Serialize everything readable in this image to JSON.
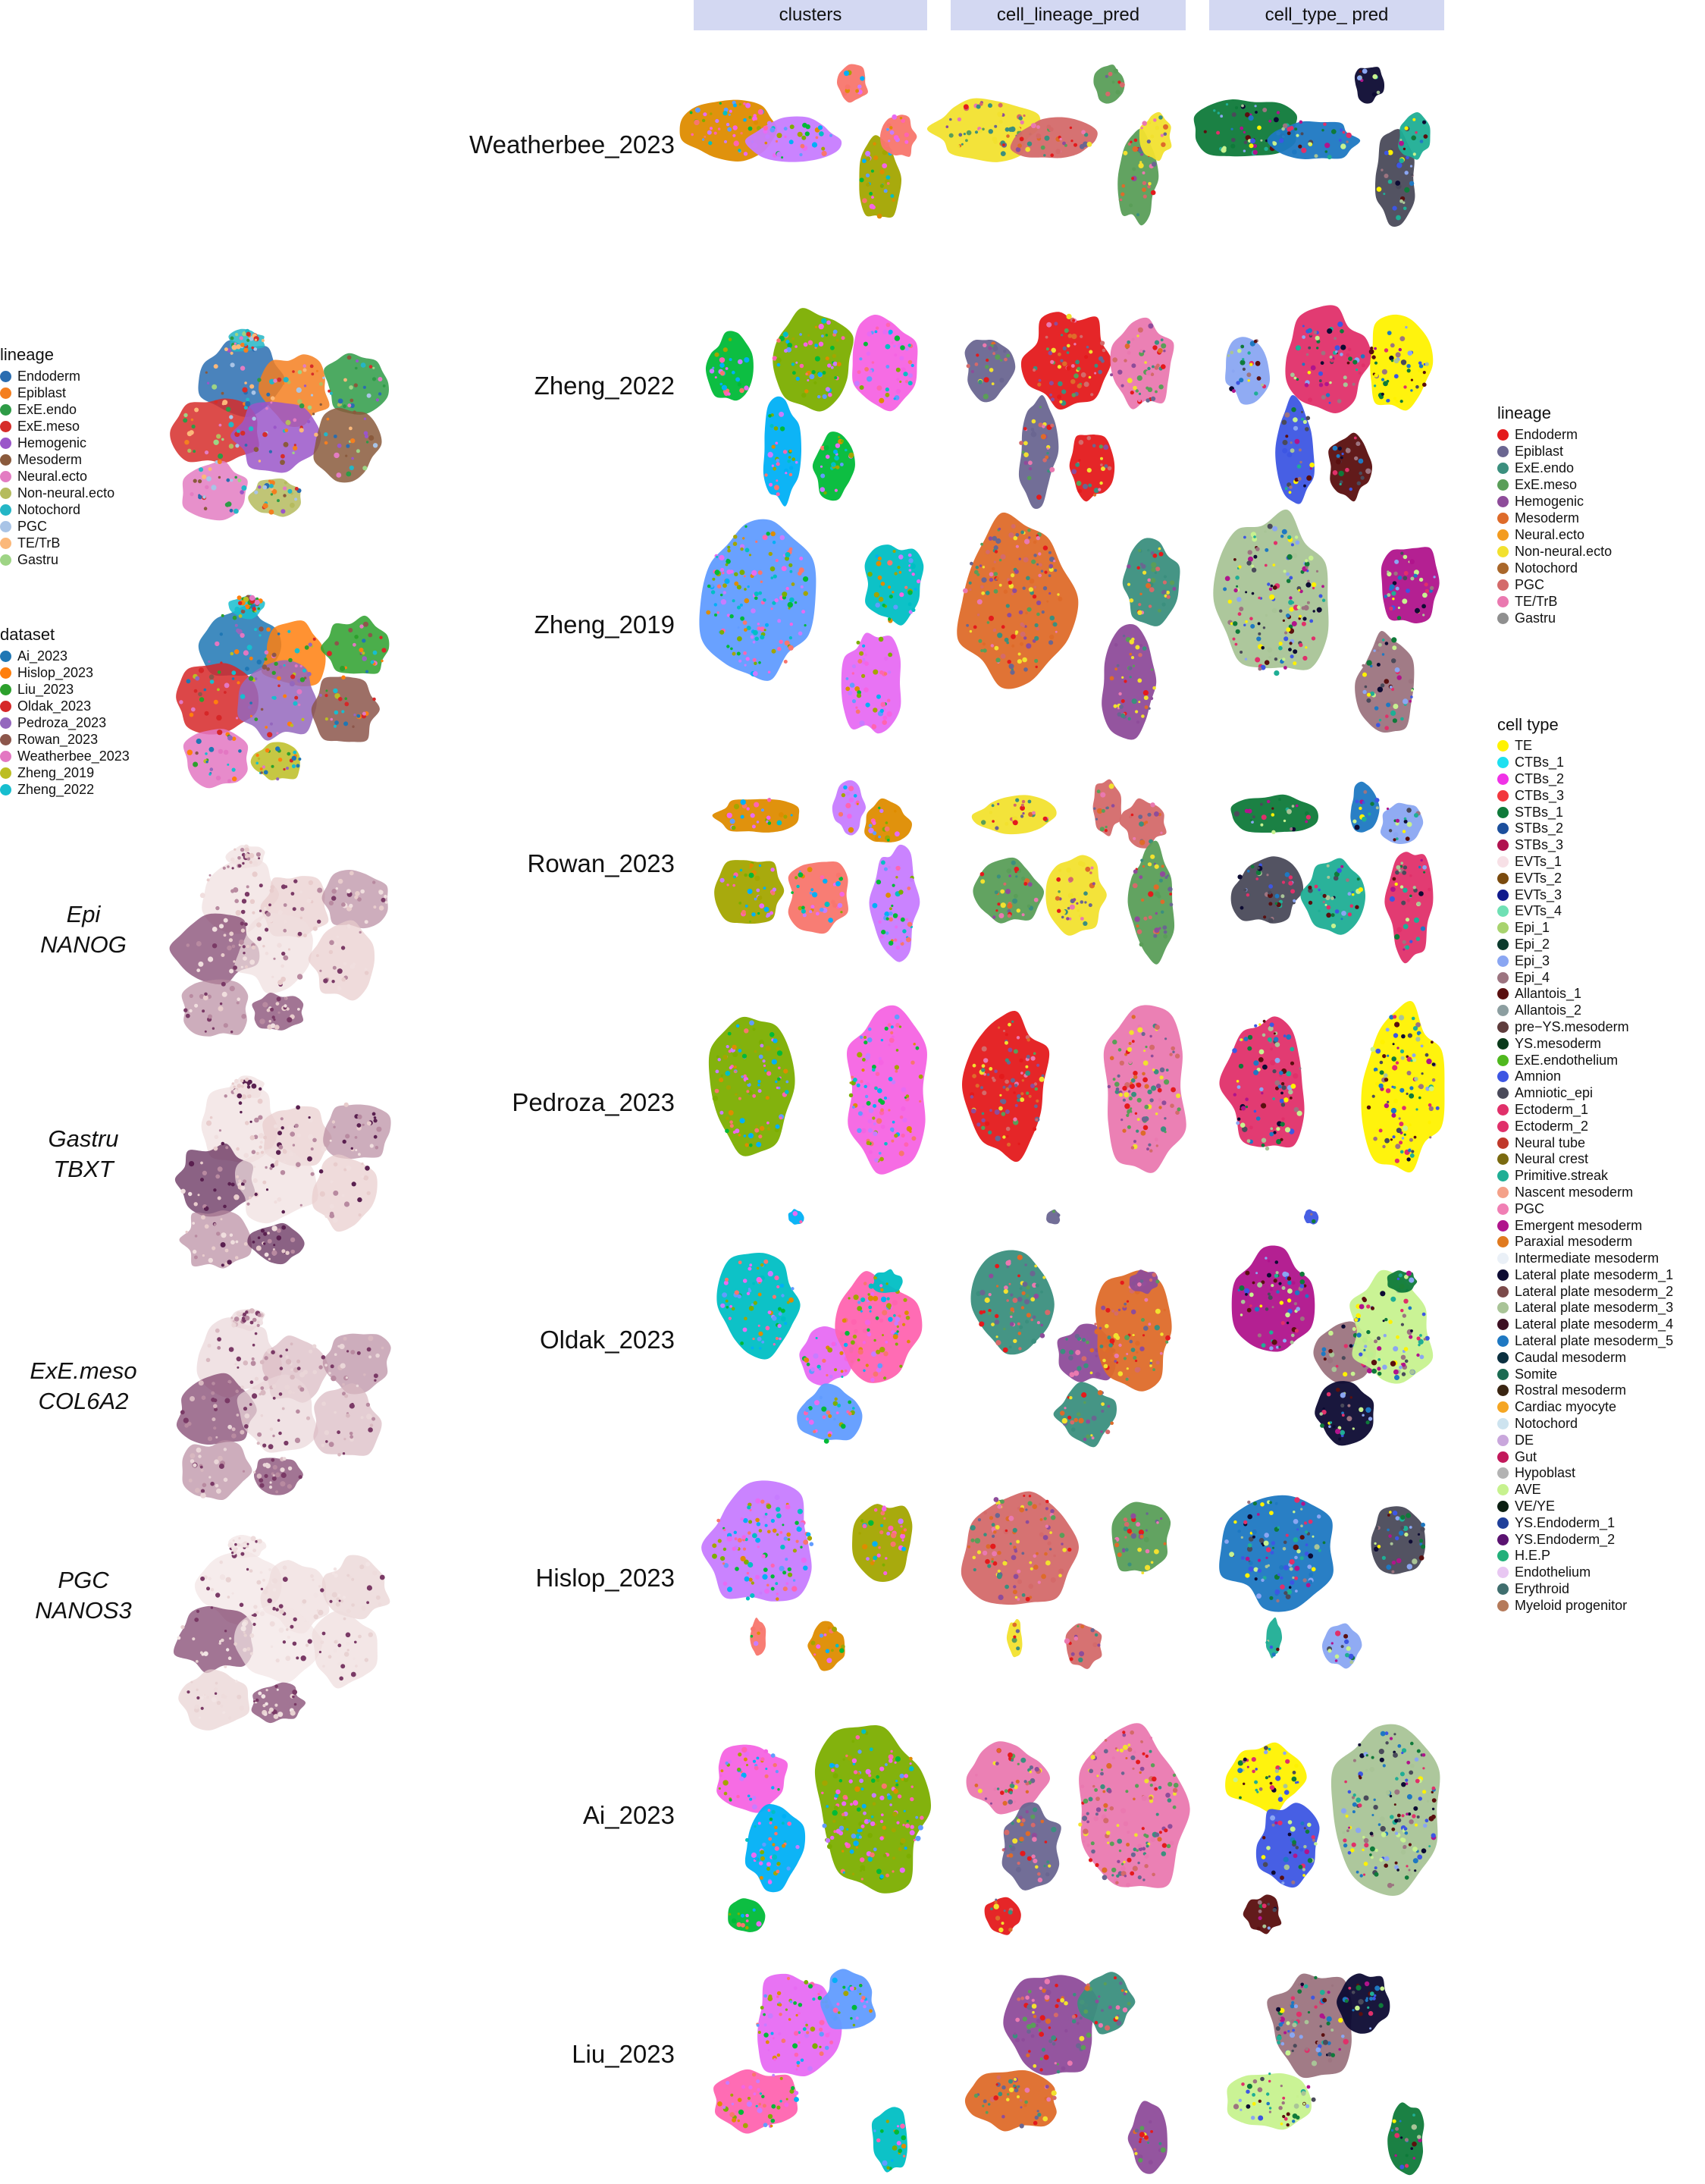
{
  "columns": [
    "clusters",
    "cell_lineage_pred",
    "cell_type_ pred"
  ],
  "datasets": [
    "Weatherbee_2023",
    "Zheng_2022",
    "Zheng_2019",
    "Rowan_2023",
    "Pedroza_2023",
    "Oldak_2023",
    "Hislop_2023",
    "Ai_2023",
    "Liu_2023"
  ],
  "gene_panels": [
    {
      "line1": "Epi",
      "line2": "NANOG"
    },
    {
      "line1": "Gastru",
      "line2": "TBXT"
    },
    {
      "line1": "ExE.meso",
      "line2": "COL6A2"
    },
    {
      "line1": "PGC",
      "line2": "NANOS3"
    }
  ],
  "left_legends": {
    "lineage": {
      "title": "lineage",
      "items": [
        {
          "label": "Endoderm",
          "color": "#2a6db0"
        },
        {
          "label": "Epiblast",
          "color": "#f47f20"
        },
        {
          "label": "ExE.endo",
          "color": "#2e9b46"
        },
        {
          "label": "ExE.meso",
          "color": "#d62d2a"
        },
        {
          "label": "Hemogenic",
          "color": "#9a56c9"
        },
        {
          "label": "Mesoderm",
          "color": "#8a5a3c"
        },
        {
          "label": "Neural.ecto",
          "color": "#e37cc2"
        },
        {
          "label": "Non-neural.ecto",
          "color": "#b5bb5e"
        },
        {
          "label": "Notochord",
          "color": "#24b6c6"
        },
        {
          "label": "PGC",
          "color": "#a9c4e6"
        },
        {
          "label": "TE/TrB",
          "color": "#fbb87a"
        },
        {
          "label": "Gastru",
          "color": "#9ed485"
        }
      ]
    },
    "dataset": {
      "title": "dataset",
      "items": [
        {
          "label": "Ai_2023",
          "color": "#1f77b4"
        },
        {
          "label": "Hislop_2023",
          "color": "#ff7f0e"
        },
        {
          "label": "Liu_2023",
          "color": "#2ca02c"
        },
        {
          "label": "Oldak_2023",
          "color": "#d62728"
        },
        {
          "label": "Pedroza_2023",
          "color": "#9467bd"
        },
        {
          "label": "Rowan_2023",
          "color": "#8c564b"
        },
        {
          "label": "Weatherbee_2023",
          "color": "#e377c2"
        },
        {
          "label": "Zheng_2019",
          "color": "#bcbd22"
        },
        {
          "label": "Zheng_2022",
          "color": "#17becf"
        }
      ]
    }
  },
  "right_legends": {
    "lineage": {
      "title": "lineage",
      "items": [
        {
          "label": "Endoderm",
          "color": "#e41a1c"
        },
        {
          "label": "Epiblast",
          "color": "#6a6691"
        },
        {
          "label": "ExE.endo",
          "color": "#3b8f7e"
        },
        {
          "label": "ExE.meso",
          "color": "#5a9e58"
        },
        {
          "label": "Hemogenic",
          "color": "#8e4c9a"
        },
        {
          "label": "Mesoderm",
          "color": "#de6b2a"
        },
        {
          "label": "Neural.ecto",
          "color": "#f39b1f"
        },
        {
          "label": "Non-neural.ecto",
          "color": "#f2e12f"
        },
        {
          "label": "Notochord",
          "color": "#a9672a"
        },
        {
          "label": "PGC",
          "color": "#d46a6a"
        },
        {
          "label": "TE/TrB",
          "color": "#ea79b0"
        },
        {
          "label": "Gastru",
          "color": "#8f8f8f"
        }
      ]
    },
    "cell_type": {
      "title": "cell type",
      "items": [
        {
          "label": "TE",
          "color": "#fff200"
        },
        {
          "label": "CTBs_1",
          "color": "#1ee0f0"
        },
        {
          "label": "CTBs_2",
          "color": "#f032e6"
        },
        {
          "label": "CTBs_3",
          "color": "#f2373d"
        },
        {
          "label": "STBs_1",
          "color": "#0f7a3a"
        },
        {
          "label": "STBs_2",
          "color": "#1c4f9c"
        },
        {
          "label": "STBs_3",
          "color": "#b0124f"
        },
        {
          "label": "EVTs_1",
          "color": "#f7e0e6"
        },
        {
          "label": "EVTs_2",
          "color": "#7a4a0e"
        },
        {
          "label": "EVTs_3",
          "color": "#101a8c"
        },
        {
          "label": "EVTs_4",
          "color": "#6fe0b4"
        },
        {
          "label": "Epi_1",
          "color": "#a8d36e"
        },
        {
          "label": "Epi_2",
          "color": "#0c3b2d"
        },
        {
          "label": "Epi_3",
          "color": "#8aa6f2"
        },
        {
          "label": "Epi_4",
          "color": "#9c7480"
        },
        {
          "label": "Allantois_1",
          "color": "#5a0f0f"
        },
        {
          "label": "Allantois_2",
          "color": "#8c9ea0"
        },
        {
          "label": "pre−YS.mesoderm",
          "color": "#5e3c3c"
        },
        {
          "label": "YS.mesoderm",
          "color": "#0a3a1a"
        },
        {
          "label": "ExE.endothelium",
          "color": "#4fb81e"
        },
        {
          "label": "Amnion",
          "color": "#3d56e3"
        },
        {
          "label": "Amniotic_epi",
          "color": "#4a4a5a"
        },
        {
          "label": "Ectoderm_1",
          "color": "#e0306a"
        },
        {
          "label": "Ectoderm_2",
          "color": "#e0306a"
        },
        {
          "label": "Neural tube",
          "color": "#c0392b"
        },
        {
          "label": "Neural crest",
          "color": "#7a6a10"
        },
        {
          "label": "Primitive.streak",
          "color": "#1fae95"
        },
        {
          "label": "Nascent mesoderm",
          "color": "#f4a189"
        },
        {
          "label": "PGC",
          "color": "#f07fb4"
        },
        {
          "label": "Emergent mesoderm",
          "color": "#b0148c"
        },
        {
          "label": "Paraxial mesoderm",
          "color": "#e07a1f"
        },
        {
          "label": "Intermediate mesoderm",
          "color": "#eaf0f7"
        },
        {
          "label": "Lateral plate mesoderm_1",
          "color": "#0d0b33"
        },
        {
          "label": "Lateral plate mesoderm_2",
          "color": "#7b4a4a"
        },
        {
          "label": "Lateral plate mesoderm_3",
          "color": "#a9c497"
        },
        {
          "label": "Lateral plate mesoderm_4",
          "color": "#3d1023"
        },
        {
          "label": "Lateral plate mesoderm_5",
          "color": "#1e78c2"
        },
        {
          "label": "Caudal mesoderm",
          "color": "#0b3040"
        },
        {
          "label": "Somite",
          "color": "#1b6b52"
        },
        {
          "label": "Rostral mesoderm",
          "color": "#3a2512"
        },
        {
          "label": "Cardiac myocyte",
          "color": "#f5a623"
        },
        {
          "label": "Notochord",
          "color": "#cde3ef"
        },
        {
          "label": "DE",
          "color": "#c9a7dc"
        },
        {
          "label": "Gut",
          "color": "#c2185b"
        },
        {
          "label": "Hypoblast",
          "color": "#b3b3b3"
        },
        {
          "label": "AVE",
          "color": "#c7f28f"
        },
        {
          "label": "VE/YE",
          "color": "#0b1f12"
        },
        {
          "label": "YS.Endoderm_1",
          "color": "#1f3f9a"
        },
        {
          "label": "YS.Endoderm_2",
          "color": "#5a1270"
        },
        {
          "label": "H.E.P",
          "color": "#22b07a"
        },
        {
          "label": "Endothelium",
          "color": "#e8c7f2"
        },
        {
          "label": "Erythroid",
          "color": "#3f6e6e"
        },
        {
          "label": "Myeloid progenitor",
          "color": "#b57a5a"
        }
      ]
    }
  }
}
